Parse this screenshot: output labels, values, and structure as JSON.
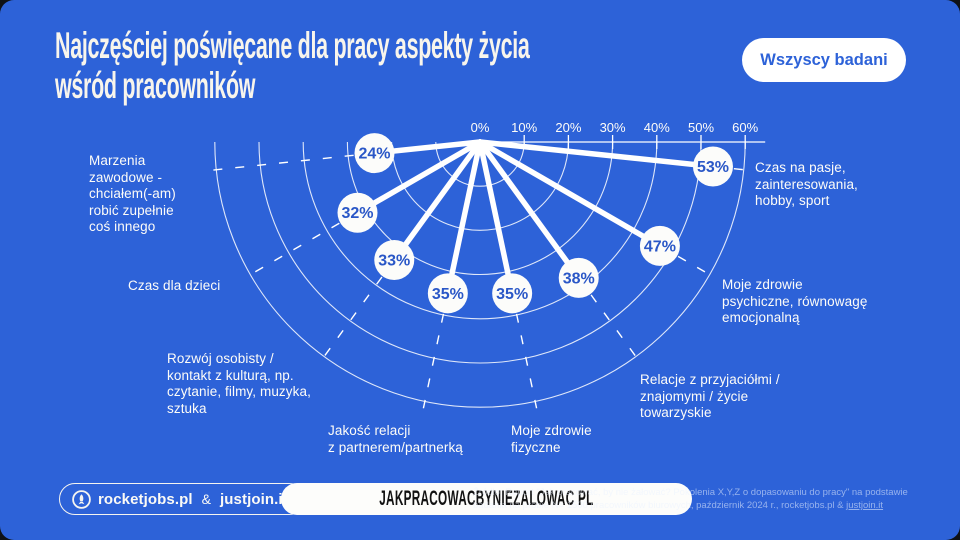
{
  "header": {
    "title_line1": "Najczęściej poświęcane dla pracy aspekty życia",
    "title_line2": "wśród pracowników",
    "filter_button": "Wszyscy badani"
  },
  "chart_data": {
    "type": "radial-fan",
    "title": "Najczęściej poświęcane dla pracy aspekty życia wśród pracowników",
    "unit": "%",
    "axis_ticks": [
      "0%",
      "10%",
      "20%",
      "30%",
      "40%",
      "50%",
      "60%"
    ],
    "axis_min": 0,
    "axis_max": 60,
    "grid": "concentric-arcs",
    "series": [
      {
        "label": "Czas na pasje, zainteresowania, hobby, sport",
        "value": 53,
        "angle_deg": 6
      },
      {
        "label": "Moje zdrowie psychiczne, równowagę emocjonalną",
        "value": 47,
        "angle_deg": 30
      },
      {
        "label": "Relacje z przyjaciółmi / znajomymi / życie towarzyskie",
        "value": 38,
        "angle_deg": 54
      },
      {
        "label": "Moje zdrowie fizyczne",
        "value": 35,
        "angle_deg": 78
      },
      {
        "label": "Jakość relacji z partnerem/partnerką",
        "value": 35,
        "angle_deg": 102
      },
      {
        "label": "Rozwój osobisty / kontakt z kulturą, np. czytanie, filmy, muzyka, sztuka",
        "value": 33,
        "angle_deg": 126
      },
      {
        "label": "Czas dla dzieci",
        "value": 32,
        "angle_deg": 150
      },
      {
        "label": "Marzenia zawodowe - chciałem(-am) robić zupełnie coś innego",
        "value": 24,
        "angle_deg": 174
      }
    ],
    "value_label_color": "#2a57c7",
    "line_color": "#ffffff"
  },
  "category_labels": [
    {
      "text": "Marzenia\nzawodowe -\nchciałem(-am)\nrobić zupełnie\ncoś innego"
    },
    {
      "text": "Czas dla dzieci"
    },
    {
      "text": "Rozwój osobisty /\nkontakt z kulturą, np.\nczytanie, filmy, muzyka,\nsztuka"
    },
    {
      "text": "Jakość relacji\nz partnerem/partnerką"
    },
    {
      "text": "Moje zdrowie\nfizyczne"
    },
    {
      "text": "Relacje z przyjaciółmi /\nznajomymi / życie\ntowarzyskie"
    },
    {
      "text": "Moje zdrowie\npsychiczne, równowagę\nemocjonalną"
    },
    {
      "text": "Czas na pasje,\nzainteresowania,\nhobby, sport"
    }
  ],
  "footer": {
    "brand1": "rocketjobs.pl",
    "amp": "&",
    "brand2": "justjoin.it",
    "hashtag": "JAKPRACOWACBYNIEZALOWAC PL",
    "source_line1": "Źródło: Raport \"Jak pracować, by nie żałować? Pokolenia X,Y,Z o dopasowaniu do pracy\" na podstawie",
    "source_line2_prefix": "badania na próbie N= 1500 pracowników biurowych, październik 2024 r., rocketjobs.pl & ",
    "source_link": "justjoin.it"
  },
  "colors": {
    "background": "#2d62d8",
    "accent_white": "#ffffff",
    "bubble_text": "#2a57c7"
  }
}
